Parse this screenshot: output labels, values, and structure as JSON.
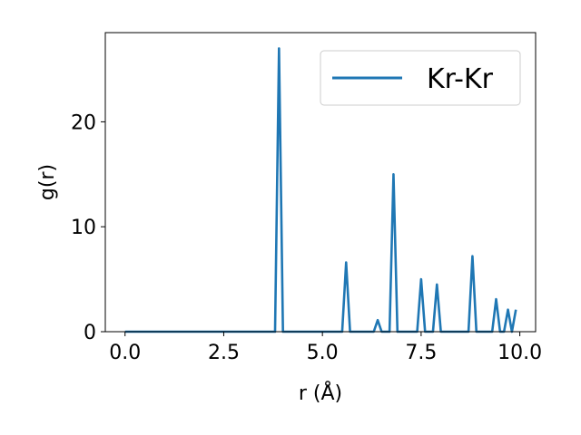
{
  "chart_data": {
    "type": "line",
    "title": "",
    "xlabel": "r (Å)",
    "ylabel": "g(r)",
    "xlim": [
      -0.5,
      10.4
    ],
    "ylim": [
      0,
      28.5
    ],
    "xticks": [
      0.0,
      2.5,
      5.0,
      7.5,
      10.0
    ],
    "xtick_labels": [
      "0.0",
      "2.5",
      "5.0",
      "7.5",
      "10.0"
    ],
    "yticks": [
      0,
      10,
      20
    ],
    "ytick_labels": [
      "0",
      "10",
      "20"
    ],
    "grid": false,
    "legend_position": "top-right",
    "series": [
      {
        "name": "Kr-Kr",
        "color": "#1f77b4",
        "x": [
          0.0,
          3.8,
          3.9,
          4.0,
          5.5,
          5.6,
          5.7,
          6.3,
          6.4,
          6.5,
          6.7,
          6.8,
          6.9,
          7.4,
          7.5,
          7.6,
          7.8,
          7.9,
          8.0,
          8.7,
          8.8,
          8.9,
          9.3,
          9.4,
          9.5,
          9.6,
          9.7,
          9.8,
          9.9
        ],
        "y": [
          0,
          0,
          27.0,
          0,
          0,
          6.6,
          0,
          0,
          1.1,
          0,
          0,
          15.0,
          0,
          0,
          5.0,
          0,
          0,
          4.5,
          0,
          0,
          7.2,
          0,
          0,
          3.1,
          0,
          0,
          2.1,
          0,
          2.1
        ]
      }
    ]
  }
}
